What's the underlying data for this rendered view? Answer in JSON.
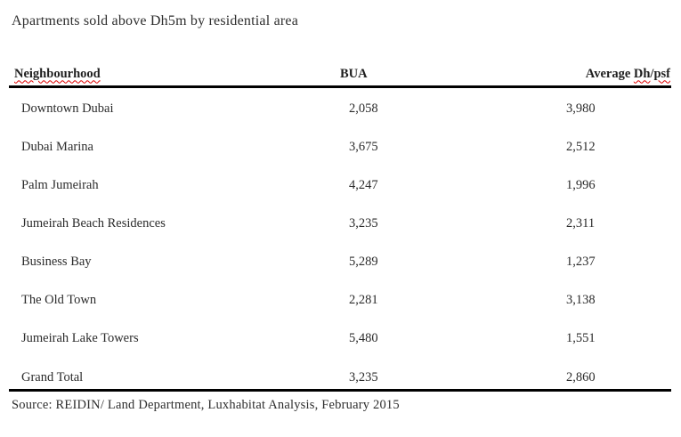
{
  "title": "Apartments sold above Dh5m by residential area",
  "table": {
    "headers": {
      "neighbourhood": "Neighbourhood",
      "bua": "BUA",
      "avg_prefix": "Average ",
      "avg_dh": "Dh",
      "avg_sep": "/",
      "avg_psf": "psf"
    },
    "rows": [
      {
        "neighbourhood": "Downtown Dubai",
        "bua": "2,058",
        "avg": "3,980"
      },
      {
        "neighbourhood": "Dubai Marina",
        "bua": "3,675",
        "avg": "2,512"
      },
      {
        "neighbourhood": "Palm Jumeirah",
        "bua": "4,247",
        "avg": "1,996"
      },
      {
        "neighbourhood": "Jumeirah Beach Residences",
        "bua": "3,235",
        "avg": "2,311"
      },
      {
        "neighbourhood": "Business Bay",
        "bua": "5,289",
        "avg": "1,237"
      },
      {
        "neighbourhood": "The Old Town",
        "bua": "2,281",
        "avg": "3,138"
      },
      {
        "neighbourhood": "Jumeirah Lake Towers",
        "bua": "5,480",
        "avg": "1,551"
      },
      {
        "neighbourhood": "Grand Total",
        "bua": "3,235",
        "avg": "2,860"
      }
    ]
  },
  "source": "Source: REIDIN/ Land Department, Luxhabitat Analysis, February 2015",
  "colors": {
    "background": "#ffffff",
    "text": "#2b2b2b",
    "rule": "#000000",
    "spellcheck_underline": "#dd0000"
  }
}
